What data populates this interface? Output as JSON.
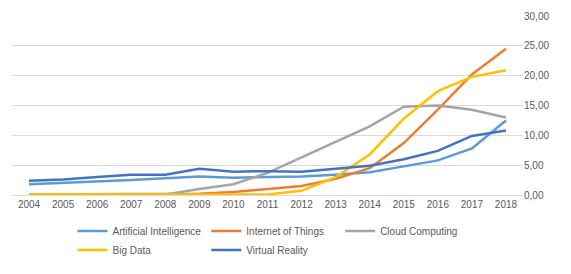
{
  "chart_data": {
    "type": "line",
    "categories": [
      "2004",
      "2005",
      "2006",
      "2007",
      "2008",
      "2009",
      "2010",
      "2011",
      "2012",
      "2013",
      "2014",
      "2015",
      "2016",
      "2017",
      "2018"
    ],
    "series": [
      {
        "name": "Artificial Intelligence",
        "color": "#5B9BD5",
        "values": [
          1.8,
          2.0,
          2.2,
          2.5,
          2.8,
          3.1,
          2.9,
          3.0,
          3.1,
          3.4,
          3.8,
          4.8,
          5.8,
          7.8,
          12.5
        ]
      },
      {
        "name": "Internet of Things",
        "color": "#ED7D31",
        "values": [
          0.1,
          0.1,
          0.1,
          0.1,
          0.1,
          0.2,
          0.5,
          1.0,
          1.5,
          2.7,
          4.5,
          8.7,
          14.3,
          20.2,
          24.5
        ]
      },
      {
        "name": "Cloud Computing",
        "color": "#A5A5A5",
        "values": [
          0.0,
          0.0,
          0.0,
          0.05,
          0.1,
          1.0,
          1.8,
          3.7,
          6.3,
          9.0,
          11.5,
          14.8,
          15.0,
          14.3,
          13.0
        ]
      },
      {
        "name": "Big Data",
        "color": "#FFC000",
        "values": [
          0.1,
          0.1,
          0.1,
          0.1,
          0.1,
          0.1,
          0.1,
          0.1,
          0.7,
          3.0,
          6.8,
          12.8,
          17.4,
          19.8,
          20.9
        ]
      },
      {
        "name": "Virtual Reality",
        "color": "#4472C4",
        "values": [
          2.4,
          2.6,
          3.0,
          3.4,
          3.4,
          4.4,
          3.9,
          4.0,
          3.9,
          4.4,
          4.9,
          6.0,
          7.4,
          9.9,
          10.8
        ]
      }
    ],
    "ylim": [
      0,
      30
    ],
    "yticks": [
      {
        "value": 0,
        "label": "0,00"
      },
      {
        "value": 5,
        "label": "5,00"
      },
      {
        "value": 10,
        "label": "10,00"
      },
      {
        "value": 15,
        "label": "15,00"
      },
      {
        "value": 20,
        "label": "20,00"
      },
      {
        "value": 25,
        "label": "25,00"
      },
      {
        "value": 30,
        "label": "30,00"
      }
    ],
    "grid": true,
    "legend": "bottom"
  }
}
